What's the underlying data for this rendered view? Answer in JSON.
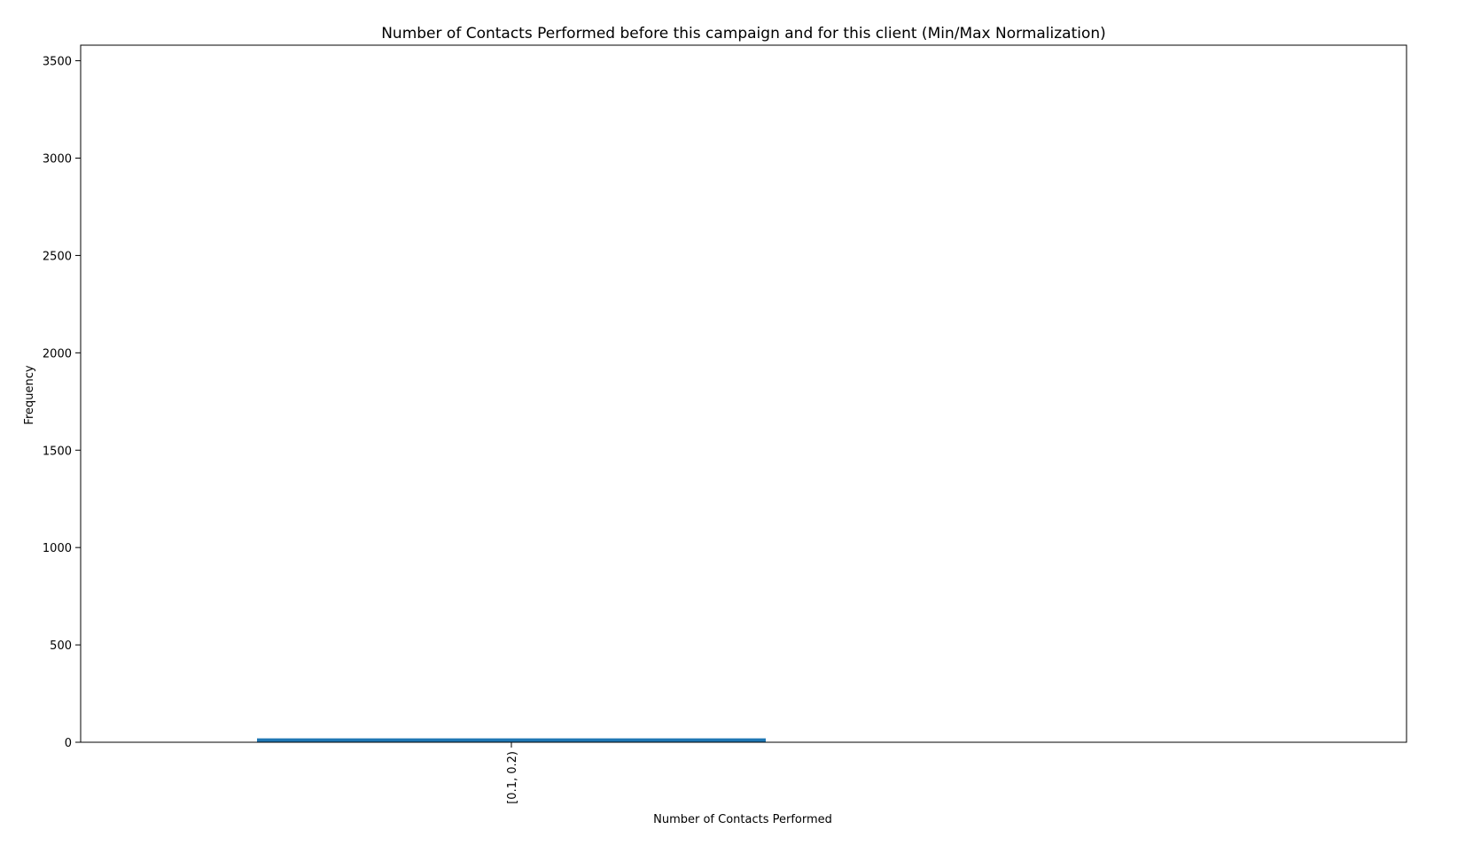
{
  "chart_data": {
    "type": "bar",
    "title": "Number of Contacts Performed before this campaign and for this client (Min/Max Normalization)",
    "xlabel": "Number of Contacts Performed",
    "ylabel": "Frequency",
    "categories": [
      "[0.1, 0.2)"
    ],
    "values": [
      20
    ],
    "ylim": [
      0,
      3580
    ],
    "yticks": [
      0,
      500,
      1000,
      1500,
      2000,
      2500,
      3000,
      3500
    ],
    "grid": false,
    "bar_color": "#1f77b4"
  }
}
